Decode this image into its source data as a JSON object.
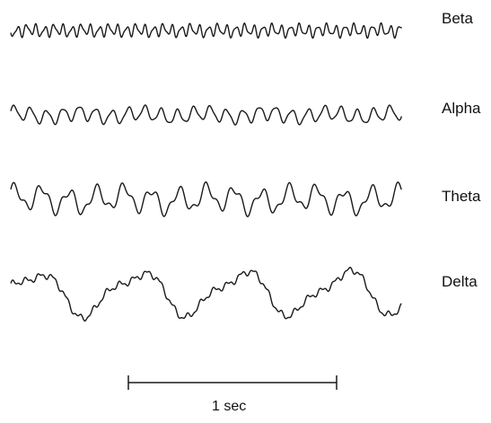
{
  "waves": [
    {
      "id": "beta",
      "label": "Beta"
    },
    {
      "id": "alpha",
      "label": "Alpha"
    },
    {
      "id": "theta",
      "label": "Theta"
    },
    {
      "id": "delta",
      "label": "Delta"
    }
  ],
  "scale_bar": {
    "label": "1 sec"
  },
  "colors": {
    "trace": "#1a1a1a",
    "background": "#ffffff"
  }
}
